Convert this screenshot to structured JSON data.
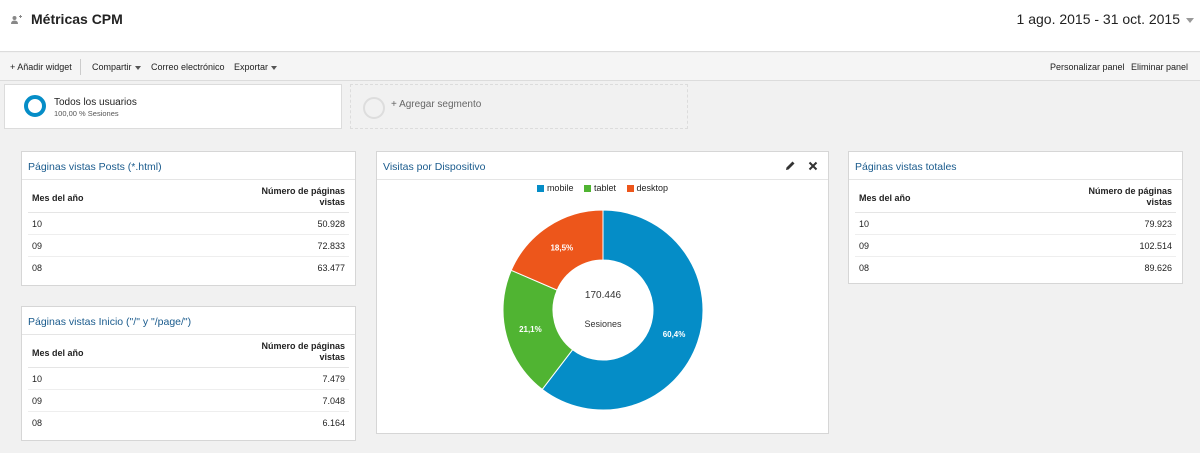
{
  "header": {
    "title": "Métricas CPM",
    "daterange": "1 ago. 2015 - 31 oct. 2015"
  },
  "toolbar": {
    "add_widget": "+ Añadir widget",
    "share": "Compartir",
    "email": "Correo electrónico",
    "export": "Exportar",
    "customize": "Personalizar panel",
    "delete": "Eliminar panel"
  },
  "segments": {
    "active": {
      "name": "Todos los usuarios",
      "sub": "100,00 % Sesiones"
    },
    "add_label": "+ Agregar segmento"
  },
  "widgets": {
    "posts": {
      "title": "Páginas vistas Posts (*.html)",
      "col1": "Mes del año",
      "col2": "Número de páginas vistas",
      "rows": [
        {
          "month": "10",
          "value": "50.928"
        },
        {
          "month": "09",
          "value": "72.833"
        },
        {
          "month": "08",
          "value": "63.477"
        }
      ]
    },
    "inicio": {
      "title": "Páginas vistas Inicio (\"/\" y \"/page/\")",
      "col1": "Mes del año",
      "col2": "Número de páginas vistas",
      "rows": [
        {
          "month": "10",
          "value": "7.479"
        },
        {
          "month": "09",
          "value": "7.048"
        },
        {
          "month": "08",
          "value": "6.164"
        }
      ]
    },
    "totales": {
      "title": "Páginas vistas totales",
      "col1": "Mes del año",
      "col2": "Número de páginas vistas",
      "rows": [
        {
          "month": "10",
          "value": "79.923"
        },
        {
          "month": "09",
          "value": "102.514"
        },
        {
          "month": "08",
          "value": "89.626"
        }
      ]
    },
    "devices": {
      "title": "Visitas por Dispositivo",
      "edit_icon": "pencil-icon",
      "close_icon": "close-icon"
    }
  },
  "chart_data": {
    "type": "pie",
    "title": "Visitas por Dispositivo",
    "donut": true,
    "center_value": "170.446",
    "center_label": "Sesiones",
    "legend_position": "top",
    "categories": [
      "mobile",
      "tablet",
      "desktop"
    ],
    "values": [
      60.4,
      21.1,
      18.5
    ],
    "labels": [
      "60,4%",
      "21,1%",
      "18,5%"
    ],
    "colors": [
      "#058dc7",
      "#50b432",
      "#ed561b"
    ]
  }
}
